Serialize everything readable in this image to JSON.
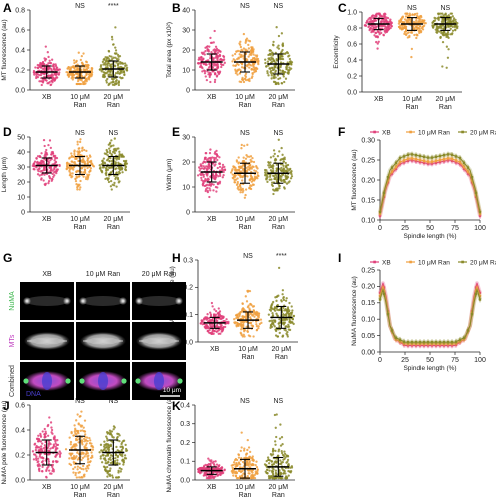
{
  "colors": {
    "xb": "#e0407a",
    "r10": "#f0a040",
    "r20": "#8a8a2a",
    "axis": "#222222"
  },
  "chart_data": [
    {
      "id": "A",
      "type": "scatter",
      "categories": [
        "XB",
        "10 μM\nRan",
        "20 μM\nRan"
      ],
      "ylabel": "MT fluorescence (au)",
      "yticks": [
        0,
        0.2,
        0.4,
        0.6,
        0.8
      ],
      "ylim": [
        0,
        0.8
      ],
      "mean": [
        0.18,
        0.18,
        0.21
      ],
      "sd": [
        0.06,
        0.06,
        0.08
      ],
      "range": [
        [
          0.05,
          0.45
        ],
        [
          0.06,
          0.45
        ],
        [
          0.05,
          0.65
        ]
      ],
      "significance": [
        "",
        "NS",
        "****"
      ]
    },
    {
      "id": "B",
      "type": "scatter",
      "categories": [
        "XB",
        "10 μM\nRan",
        "20 μM\nRan"
      ],
      "ylabel": "Total area (px x10²)",
      "yticks": [
        0,
        10,
        20,
        30,
        40
      ],
      "ylim": [
        0,
        40
      ],
      "mean": [
        14,
        14,
        13
      ],
      "sd": [
        4,
        5,
        5
      ],
      "range": [
        [
          4,
          33
        ],
        [
          4,
          35
        ],
        [
          3,
          35
        ]
      ],
      "significance": [
        "",
        "NS",
        "NS"
      ]
    },
    {
      "id": "C",
      "type": "scatter",
      "categories": [
        "XB",
        "10 μM\nRan",
        "20 μM\nRan"
      ],
      "ylabel": "Eccentricity",
      "yticks": [
        0,
        0.2,
        0.4,
        0.6,
        0.8,
        1.0
      ],
      "ylim": [
        0,
        1.0
      ],
      "mean": [
        0.85,
        0.85,
        0.85
      ],
      "sd": [
        0.07,
        0.08,
        0.08
      ],
      "range": [
        [
          0.5,
          0.98
        ],
        [
          0.4,
          0.98
        ],
        [
          0.3,
          0.98
        ]
      ],
      "significance": [
        "",
        "NS",
        "NS"
      ]
    },
    {
      "id": "D",
      "type": "scatter",
      "categories": [
        "XB",
        "10 μM\nRan",
        "20 μM\nRan"
      ],
      "ylabel": "Length (μm)",
      "yticks": [
        0,
        10,
        20,
        30,
        40,
        50
      ],
      "ylim": [
        0,
        50
      ],
      "mean": [
        31,
        31,
        31
      ],
      "sd": [
        5,
        6,
        6
      ],
      "range": [
        [
          18,
          48
        ],
        [
          15,
          50
        ],
        [
          15,
          50
        ]
      ],
      "significance": [
        "",
        "NS",
        "NS"
      ]
    },
    {
      "id": "E",
      "type": "scatter",
      "categories": [
        "XB",
        "10 μM\nRan",
        "20 μM\nRan"
      ],
      "ylabel": "Width (μm)",
      "yticks": [
        0,
        10,
        20,
        30
      ],
      "ylim": [
        0,
        30
      ],
      "mean": [
        16,
        15.5,
        15.5
      ],
      "sd": [
        4,
        4,
        4
      ],
      "range": [
        [
          6,
          27
        ],
        [
          5,
          29
        ],
        [
          5,
          29
        ]
      ],
      "significance": [
        "",
        "NS",
        "NS"
      ]
    },
    {
      "id": "F",
      "type": "line",
      "xlabel": "Spindle length (%)",
      "ylabel": "MT fluorescence (au)",
      "xticks": [
        0,
        25,
        50,
        75,
        100
      ],
      "yticks": [
        0.1,
        0.15,
        0.2,
        0.25,
        0.3
      ],
      "xlim": [
        0,
        100
      ],
      "ylim": [
        0.1,
        0.3
      ],
      "series": [
        {
          "name": "XB",
          "x": [
            0,
            5,
            10,
            20,
            30,
            40,
            50,
            60,
            70,
            80,
            90,
            95,
            100
          ],
          "y": [
            0.11,
            0.17,
            0.21,
            0.24,
            0.25,
            0.245,
            0.24,
            0.245,
            0.25,
            0.24,
            0.21,
            0.17,
            0.11
          ]
        },
        {
          "name": "10 μM Ran",
          "x": [
            0,
            5,
            10,
            20,
            30,
            40,
            50,
            60,
            70,
            80,
            90,
            95,
            100
          ],
          "y": [
            0.115,
            0.175,
            0.215,
            0.245,
            0.255,
            0.25,
            0.245,
            0.25,
            0.255,
            0.245,
            0.215,
            0.175,
            0.115
          ]
        },
        {
          "name": "20 μM Ran",
          "x": [
            0,
            5,
            10,
            20,
            30,
            40,
            50,
            60,
            70,
            80,
            90,
            95,
            100
          ],
          "y": [
            0.12,
            0.18,
            0.225,
            0.255,
            0.265,
            0.26,
            0.255,
            0.26,
            0.265,
            0.255,
            0.225,
            0.18,
            0.12
          ]
        }
      ]
    },
    {
      "id": "H",
      "type": "scatter",
      "categories": [
        "XB",
        "10 μM\nRan",
        "20 μM\nRan"
      ],
      "ylabel": "NuMA fluorescence (au)",
      "yticks": [
        0,
        0.1,
        0.2,
        0.3
      ],
      "ylim": [
        0,
        0.3
      ],
      "mean": [
        0.07,
        0.08,
        0.09
      ],
      "sd": [
        0.02,
        0.03,
        0.04
      ],
      "range": [
        [
          0.03,
          0.15
        ],
        [
          0.02,
          0.22
        ],
        [
          0.02,
          0.28
        ]
      ],
      "significance": [
        "",
        "NS",
        "****"
      ]
    },
    {
      "id": "I",
      "type": "line",
      "xlabel": "Spindle length (%)",
      "ylabel": "NuMA fluorescence (au)",
      "xticks": [
        0,
        25,
        50,
        75,
        100
      ],
      "yticks": [
        0,
        0.05,
        0.1,
        0.15,
        0.2,
        0.25
      ],
      "xlim": [
        0,
        100
      ],
      "ylim": [
        0,
        0.25
      ],
      "series": [
        {
          "name": "XB",
          "x": [
            0,
            3,
            6,
            10,
            15,
            25,
            50,
            75,
            85,
            90,
            94,
            97,
            100
          ],
          "y": [
            0.18,
            0.21,
            0.17,
            0.08,
            0.04,
            0.02,
            0.02,
            0.02,
            0.04,
            0.08,
            0.17,
            0.21,
            0.18
          ]
        },
        {
          "name": "10 μM Ran",
          "x": [
            0,
            3,
            6,
            10,
            15,
            25,
            50,
            75,
            85,
            90,
            94,
            97,
            100
          ],
          "y": [
            0.17,
            0.2,
            0.16,
            0.08,
            0.04,
            0.025,
            0.025,
            0.025,
            0.04,
            0.08,
            0.16,
            0.2,
            0.17
          ]
        },
        {
          "name": "20 μM Ran",
          "x": [
            0,
            3,
            6,
            10,
            15,
            25,
            50,
            75,
            85,
            90,
            94,
            97,
            100
          ],
          "y": [
            0.16,
            0.19,
            0.15,
            0.08,
            0.045,
            0.03,
            0.03,
            0.03,
            0.045,
            0.08,
            0.15,
            0.19,
            0.16
          ]
        }
      ]
    },
    {
      "id": "J",
      "type": "scatter",
      "categories": [
        "XB",
        "10 μM\nRan",
        "20 μM\nRan"
      ],
      "ylabel": "NuMA pole fluorescence (au)",
      "yticks": [
        0,
        0.2,
        0.4,
        0.6
      ],
      "ylim": [
        0,
        0.6
      ],
      "mean": [
        0.22,
        0.24,
        0.22
      ],
      "sd": [
        0.1,
        0.11,
        0.1
      ],
      "range": [
        [
          0.02,
          0.5
        ],
        [
          0.02,
          0.55
        ],
        [
          0.02,
          0.5
        ]
      ],
      "significance": [
        "",
        "NS",
        "NS"
      ]
    },
    {
      "id": "K",
      "type": "scatter",
      "categories": [
        "XB",
        "10 μM\nRan",
        "20 μM\nRan"
      ],
      "ylabel": "NuMA chromatin fluorescence (au)",
      "yticks": [
        0,
        0.1,
        0.2,
        0.3,
        0.4
      ],
      "ylim": [
        0,
        0.4
      ],
      "mean": [
        0.05,
        0.06,
        0.07
      ],
      "sd": [
        0.02,
        0.05,
        0.05
      ],
      "range": [
        [
          0.01,
          0.12
        ],
        [
          0.01,
          0.3
        ],
        [
          0.01,
          0.35
        ]
      ],
      "significance": [
        "",
        "NS",
        "NS"
      ]
    }
  ],
  "micrographs": {
    "columns": [
      "XB",
      "10 μM Ran",
      "20 μM Ran"
    ],
    "rows": [
      "NuMA",
      "MTs",
      "Combined"
    ],
    "dna_label": "DNA",
    "scale_bar": "10 μm"
  }
}
